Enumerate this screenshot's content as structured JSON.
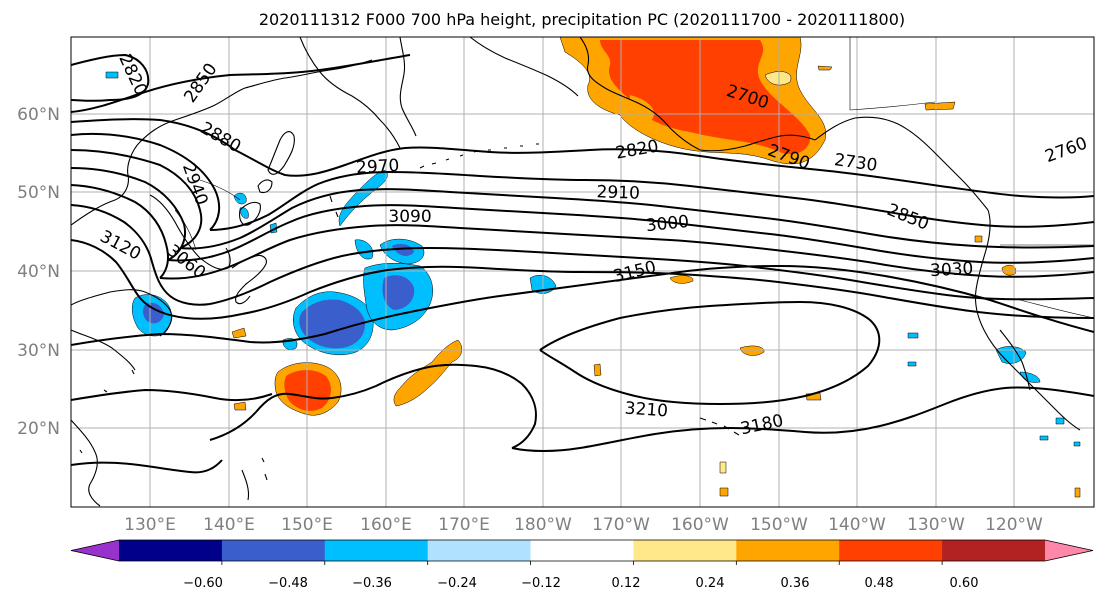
{
  "title": "2020111312 F000 700 hPa height, precipitation PC (2020111700 - 2020111800)",
  "lat_labels": [
    "60°N",
    "50°N",
    "40°N",
    "30°N",
    "20°N"
  ],
  "lon_labels": [
    "130°E",
    "140°E",
    "150°E",
    "160°E",
    "170°E",
    "180°W",
    "170°W",
    "160°W",
    "150°W",
    "140°W",
    "130°W",
    "120°W"
  ],
  "colorbar": {
    "colors": [
      "#9932cc",
      "#00008b",
      "#3a5fcd",
      "#00bfff",
      "#b0e2ff",
      "#ffffff",
      "#ffe88a",
      "#ffa500",
      "#ff4000",
      "#b22222",
      "#ff88aa"
    ],
    "tick_labels": [
      "−0.60",
      "−0.48",
      "−0.36",
      "−0.24",
      "−0.12",
      "0.12",
      "0.24",
      "0.36",
      "0.48",
      "0.60"
    ]
  },
  "contour_labels": [
    "2820",
    "2850",
    "2880",
    "2940",
    "2970",
    "3090",
    "3120",
    "3060",
    "2700",
    "2820",
    "2910",
    "2790",
    "2730",
    "2760",
    "3000",
    "2850",
    "3150",
    "3030",
    "3210",
    "3180"
  ]
}
